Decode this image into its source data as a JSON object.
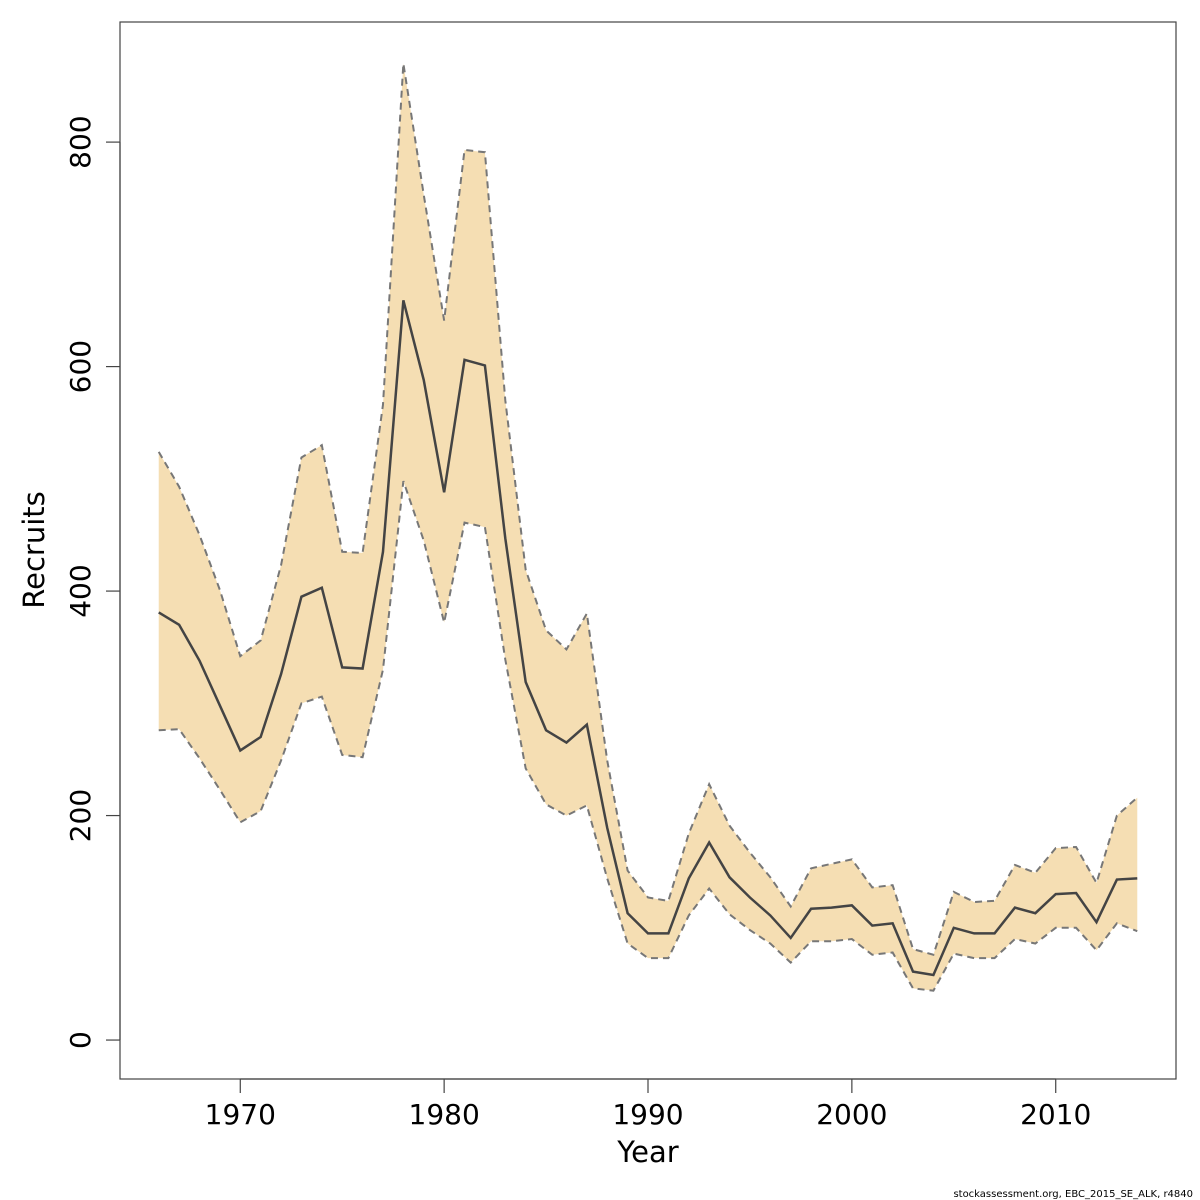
{
  "chart_data": {
    "type": "line",
    "x": [
      1966,
      1967,
      1968,
      1969,
      1970,
      1971,
      1972,
      1973,
      1974,
      1975,
      1976,
      1977,
      1978,
      1979,
      1980,
      1981,
      1982,
      1983,
      1984,
      1985,
      1986,
      1987,
      1988,
      1989,
      1990,
      1991,
      1992,
      1993,
      1994,
      1995,
      1996,
      1997,
      1998,
      1999,
      2000,
      2001,
      2002,
      2003,
      2004,
      2005,
      2006,
      2007,
      2008,
      2009,
      2010,
      2011,
      2012,
      2013,
      2014
    ],
    "values": [
      381,
      370,
      338,
      298,
      258,
      270,
      326,
      395,
      403,
      332,
      331,
      435,
      659,
      588,
      488,
      606,
      601,
      447,
      319,
      276,
      265,
      281,
      189,
      113,
      95,
      95,
      144,
      176,
      145,
      127,
      111,
      91,
      117,
      118,
      120,
      102,
      104,
      61,
      58,
      100,
      95,
      95,
      118,
      113,
      130,
      131,
      105,
      143,
      144
    ],
    "upper": [
      524,
      493,
      450,
      401,
      342,
      356,
      423,
      519,
      530,
      435,
      434,
      566,
      870,
      753,
      641,
      793,
      791,
      570,
      419,
      365,
      348,
      380,
      249,
      151,
      127,
      124,
      184,
      228,
      191,
      167,
      145,
      119,
      153,
      157,
      161,
      136,
      138,
      81,
      76,
      132,
      123,
      124,
      156,
      149,
      171,
      172,
      140,
      200,
      216
    ],
    "lower": [
      276,
      277,
      251,
      223,
      194,
      204,
      249,
      300,
      306,
      254,
      252,
      330,
      498,
      445,
      372,
      461,
      457,
      339,
      242,
      210,
      200,
      209,
      144,
      86,
      73,
      73,
      111,
      135,
      112,
      98,
      86,
      69,
      88,
      88,
      90,
      76,
      78,
      46,
      44,
      77,
      73,
      73,
      90,
      86,
      100,
      100,
      80,
      104,
      97
    ],
    "color": "#444444",
    "band_color": "#f5deb3",
    "band_line_color": "#777777",
    "xlabel": "Year",
    "ylabel": "Recruits",
    "xlim": [
      1964.1,
      2015.9
    ],
    "ylim": [
      -34.7,
      907
    ],
    "xticks": [
      1970,
      1980,
      1990,
      2000,
      2010
    ],
    "yticks": [
      0,
      200,
      400,
      600,
      800
    ],
    "footnote": "stockassessment.org, EBC_2015_SE_ALK, r4840"
  }
}
